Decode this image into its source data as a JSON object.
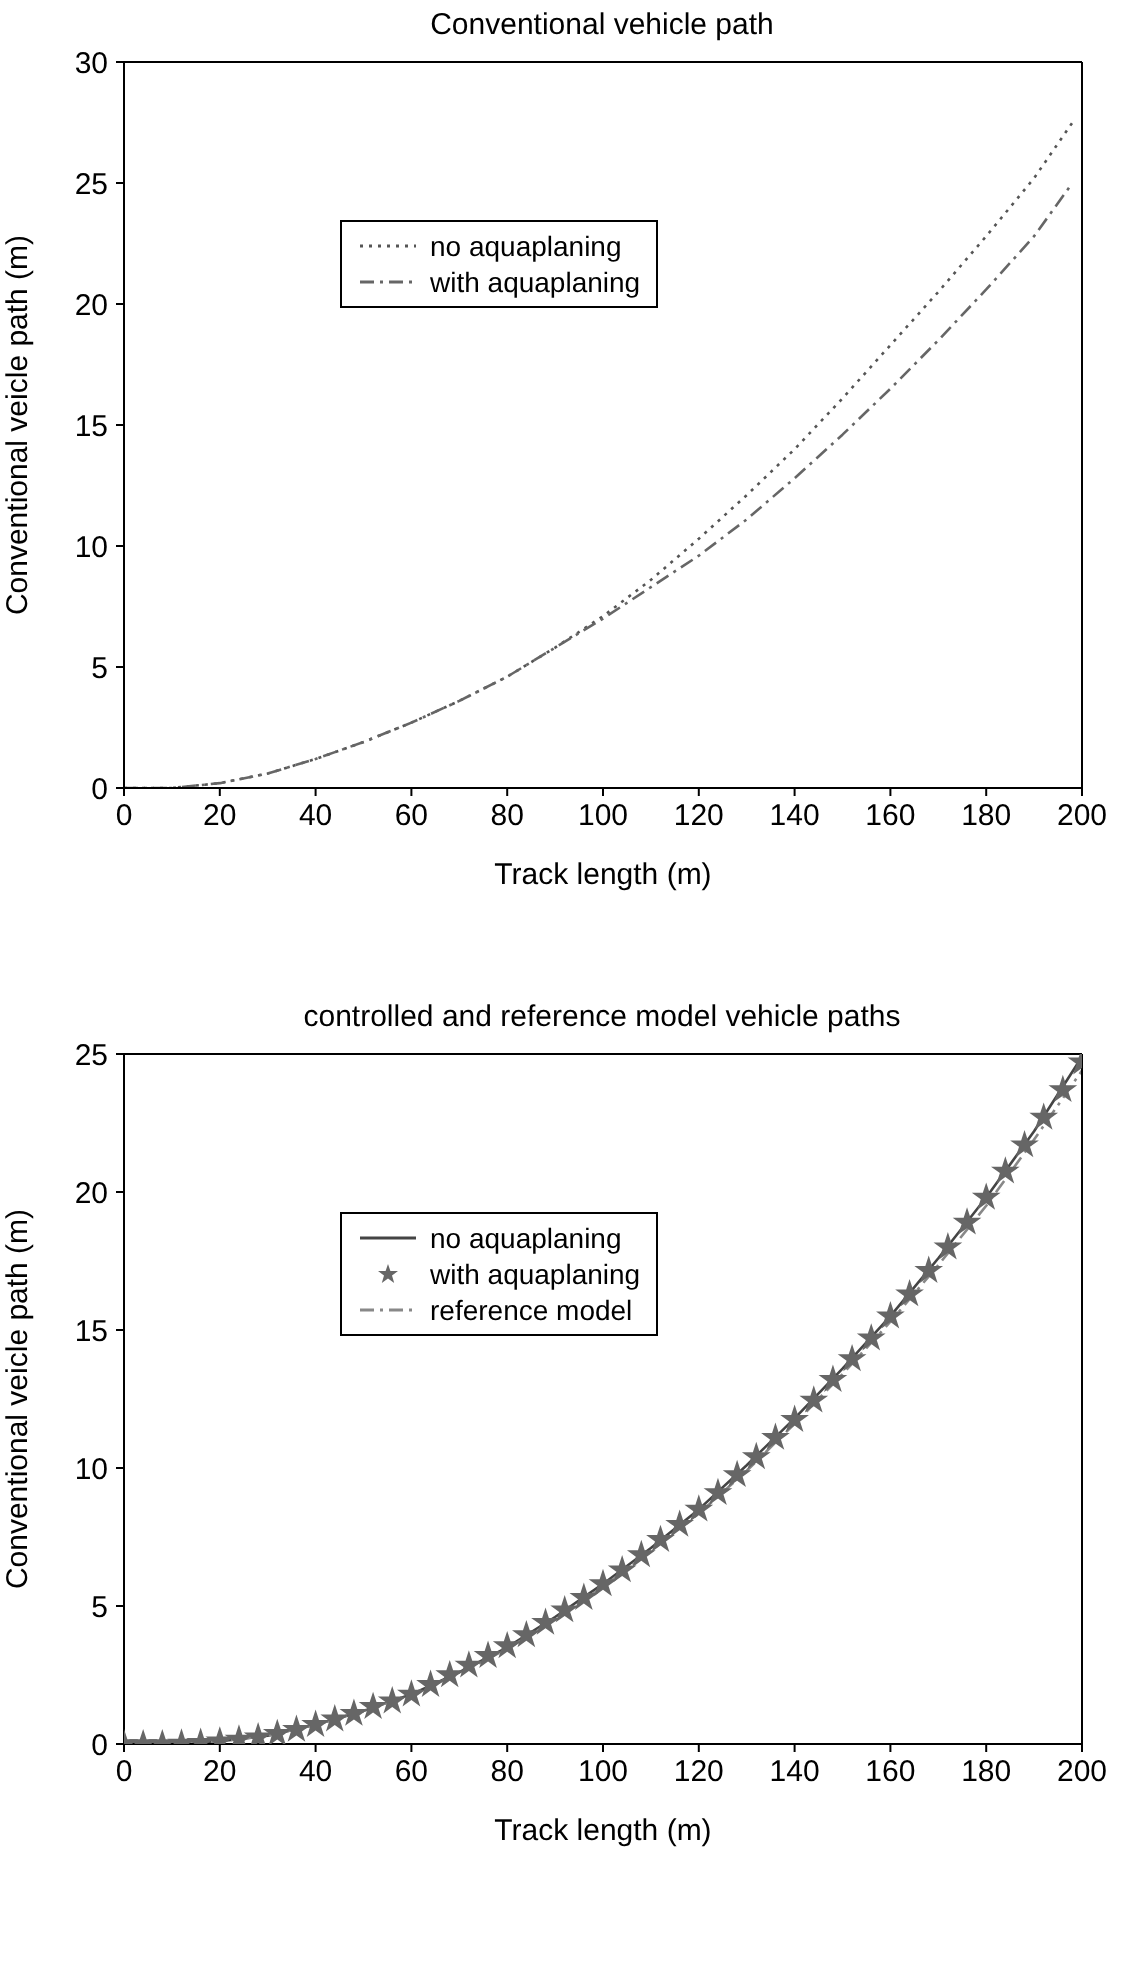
{
  "chart_data": [
    {
      "type": "line",
      "title": "Conventional vehicle path",
      "xlabel": "Track length (m)",
      "ylabel": "Conventional veicle path (m)",
      "xlim": [
        0,
        200
      ],
      "xticks": [
        0,
        20,
        40,
        60,
        80,
        100,
        120,
        140,
        160,
        180,
        200
      ],
      "ylim": [
        0,
        30
      ],
      "yticks": [
        0,
        5,
        10,
        15,
        20,
        25,
        30
      ],
      "grid": false,
      "legend": "top left",
      "marker": "none",
      "series": [
        {
          "name": "no aquaplaning",
          "color": "#555555",
          "line_style": "dotted",
          "x": [
            0,
            10,
            20,
            30,
            40,
            50,
            60,
            70,
            80,
            90,
            100,
            110,
            120,
            130,
            140,
            150,
            160,
            170,
            180,
            190,
            198
          ],
          "values": [
            0,
            0,
            0.2,
            0.6,
            1.2,
            1.9,
            2.7,
            3.6,
            4.6,
            5.8,
            7.1,
            8.6,
            10.3,
            12.1,
            14.0,
            16.1,
            18.3,
            20.5,
            22.8,
            25.2,
            27.5
          ]
        },
        {
          "name": "with aquaplaning",
          "color": "#666666",
          "line_style": "dashed",
          "x": [
            0,
            10,
            20,
            30,
            40,
            50,
            60,
            70,
            80,
            90,
            100,
            110,
            120,
            130,
            140,
            150,
            160,
            170,
            180,
            190,
            198
          ],
          "values": [
            0,
            0,
            0.2,
            0.6,
            1.2,
            1.9,
            2.7,
            3.6,
            4.6,
            5.8,
            7.0,
            8.3,
            9.6,
            11.1,
            12.8,
            14.6,
            16.5,
            18.5,
            20.6,
            22.8,
            25.0
          ]
        }
      ]
    },
    {
      "type": "line",
      "title": "controlled and reference model vehicle paths",
      "xlabel": "Track length (m)",
      "ylabel": "Conventional veicle path (m)",
      "xlim": [
        0,
        200
      ],
      "xticks": [
        0,
        20,
        40,
        60,
        80,
        100,
        120,
        140,
        160,
        180,
        200
      ],
      "ylim": [
        0,
        25
      ],
      "yticks": [
        0,
        5,
        10,
        15,
        20,
        25
      ],
      "grid": false,
      "legend": "top left",
      "series": [
        {
          "name": "no aquaplaning",
          "color": "#444444",
          "line_style": "solid",
          "marker": "none",
          "x": [
            0,
            10,
            20,
            30,
            40,
            50,
            60,
            70,
            80,
            90,
            100,
            110,
            120,
            130,
            140,
            150,
            160,
            170,
            180,
            190,
            200
          ],
          "values": [
            0,
            0.02,
            0.1,
            0.3,
            0.7,
            1.2,
            1.8,
            2.6,
            3.5,
            4.6,
            5.8,
            7.1,
            8.5,
            10.1,
            11.8,
            13.6,
            15.5,
            17.6,
            19.8,
            22.2,
            24.9
          ]
        },
        {
          "name": "with aquaplaning",
          "type": "scatter",
          "color": "#666666",
          "marker": "star",
          "x": [
            0,
            4,
            8,
            12,
            16,
            20,
            24,
            28,
            32,
            36,
            40,
            44,
            48,
            52,
            56,
            60,
            64,
            68,
            72,
            76,
            80,
            84,
            88,
            92,
            96,
            100,
            104,
            108,
            112,
            116,
            120,
            124,
            128,
            132,
            136,
            140,
            144,
            148,
            152,
            156,
            160,
            164,
            168,
            172,
            176,
            180,
            184,
            188,
            192,
            196,
            200
          ],
          "values": [
            0,
            0,
            0,
            0.02,
            0.05,
            0.1,
            0.17,
            0.25,
            0.37,
            0.52,
            0.7,
            0.9,
            1.1,
            1.35,
            1.55,
            1.8,
            2.15,
            2.5,
            2.85,
            3.2,
            3.55,
            3.95,
            4.4,
            4.85,
            5.3,
            5.8,
            6.3,
            6.85,
            7.4,
            7.95,
            8.5,
            9.1,
            9.75,
            10.4,
            11.1,
            11.75,
            12.45,
            13.2,
            13.95,
            14.7,
            15.5,
            16.3,
            17.15,
            18.0,
            18.9,
            19.8,
            20.75,
            21.7,
            22.7,
            23.7,
            24.7
          ]
        },
        {
          "name": "reference model",
          "color": "#888888",
          "line_style": "dashed",
          "marker": "none",
          "x": [
            0,
            10,
            20,
            30,
            40,
            50,
            60,
            70,
            80,
            90,
            100,
            110,
            120,
            130,
            140,
            150,
            160,
            170,
            180,
            190,
            200
          ],
          "values": [
            0,
            0.02,
            0.1,
            0.3,
            0.7,
            1.2,
            1.8,
            2.55,
            3.45,
            4.5,
            5.7,
            7.0,
            8.35,
            9.9,
            11.6,
            13.4,
            15.3,
            17.35,
            19.5,
            21.9,
            24.4
          ]
        }
      ]
    }
  ]
}
